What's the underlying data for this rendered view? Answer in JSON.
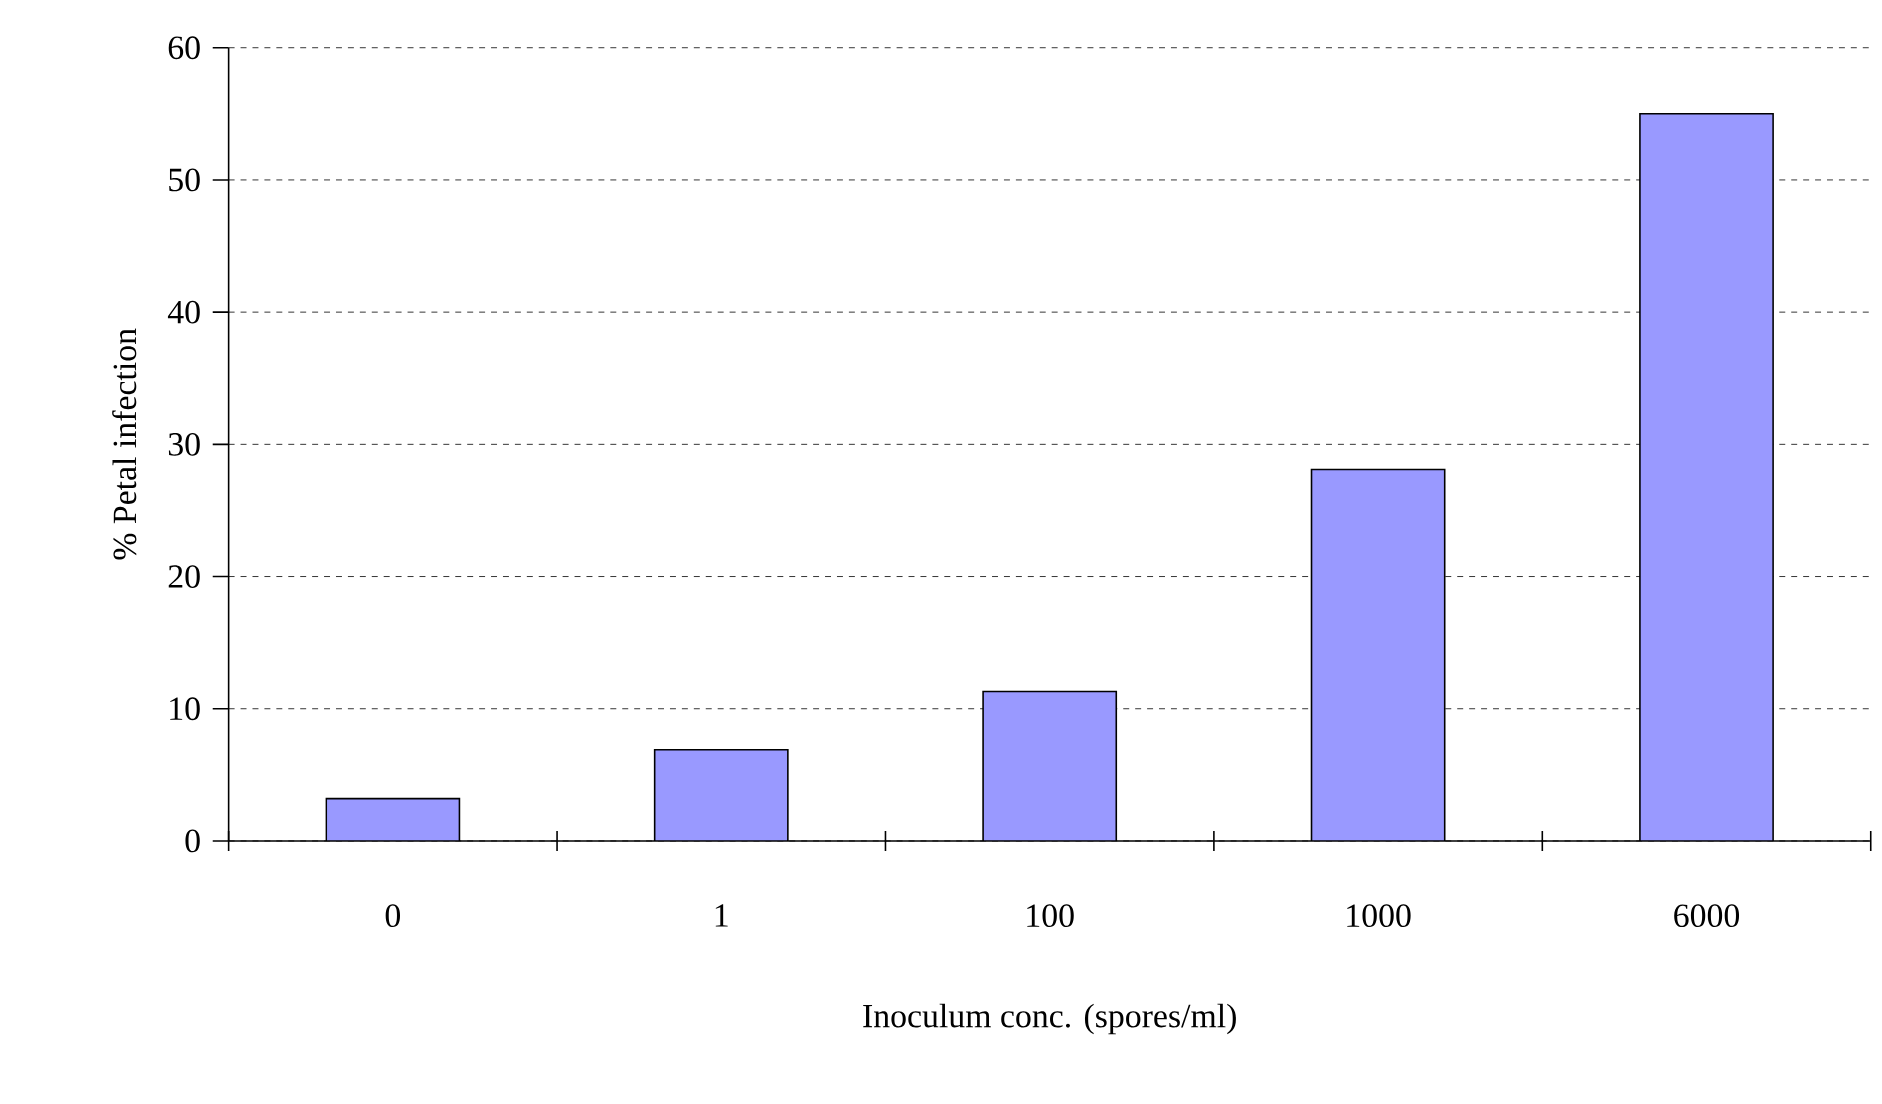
{
  "chart_data": {
    "type": "bar",
    "xlabel": "Inoculum conc. (spores/ml)",
    "ylabel": "% Petal infection",
    "categories": [
      "0",
      "1",
      "100",
      "1000",
      "6000"
    ],
    "values": [
      3.2,
      6.9,
      11.3,
      28.1,
      55.0
    ],
    "color": "#9999ff",
    "ylim": [
      0,
      60
    ],
    "yticks": [
      0,
      10,
      20,
      30,
      40,
      50,
      60
    ],
    "grid": "y"
  }
}
